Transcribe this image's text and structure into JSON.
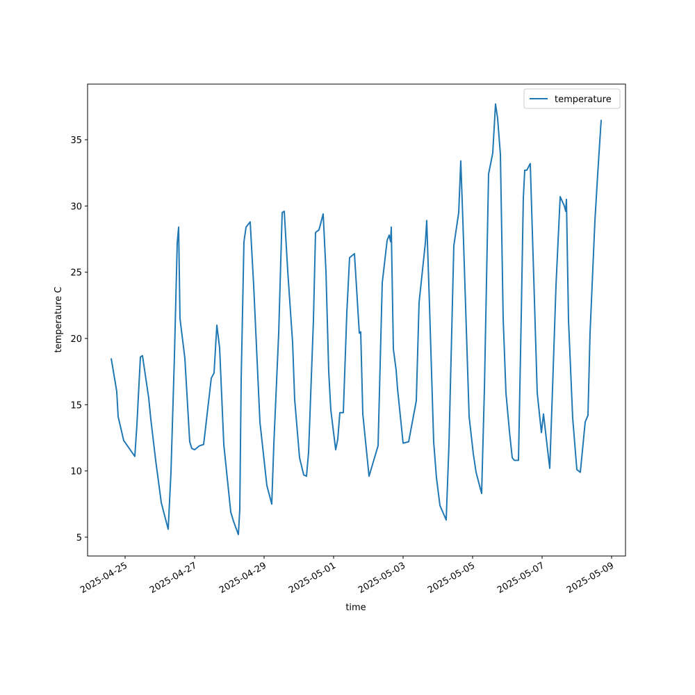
{
  "chart_data": {
    "type": "line",
    "xlabel": "time",
    "ylabel": "temperature C",
    "x": [
      "2025-04-24T14:24",
      "2025-04-24T18:14",
      "2025-04-24T19:12",
      "2025-04-24T23:02",
      "2025-04-25T06:43",
      "2025-04-25T08:10",
      "2025-04-25T10:34",
      "2025-04-25T12:00",
      "2025-04-25T16:19",
      "2025-04-25T17:46",
      "2025-04-25T21:07",
      "2025-04-26T01:00",
      "2025-04-26T05:46",
      "2025-04-26T07:41",
      "2025-04-26T10:05",
      "2025-04-26T12:00",
      "2025-04-26T12:58",
      "2025-04-26T13:55",
      "2025-04-26T17:17",
      "2025-04-26T20:38",
      "2025-04-26T22:05",
      "2025-04-27T00:00",
      "2025-04-27T03:22",
      "2025-04-27T06:14",
      "2025-04-27T07:12",
      "2025-04-27T11:31",
      "2025-04-27T13:26",
      "2025-04-27T15:22",
      "2025-04-27T17:17",
      "2025-04-27T20:10",
      "2025-04-28T00:58",
      "2025-04-28T02:53",
      "2025-04-28T06:14",
      "2025-04-28T07:12",
      "2025-04-28T08:10",
      "2025-04-28T10:05",
      "2025-04-28T11:31",
      "2025-04-28T14:24",
      "2025-04-28T16:48",
      "2025-04-28T21:07",
      "2025-04-29T01:55",
      "2025-04-29T05:17",
      "2025-04-29T06:43",
      "2025-04-29T10:05",
      "2025-04-29T12:29",
      "2025-04-29T13:55",
      "2025-04-29T16:19",
      "2025-04-29T19:41",
      "2025-04-29T21:07",
      "2025-04-30T00:29",
      "2025-04-30T03:22",
      "2025-04-30T05:17",
      "2025-04-30T06:43",
      "2025-04-30T10:05",
      "2025-04-30T11:31",
      "2025-04-30T13:55",
      "2025-04-30T16:48",
      "2025-04-30T18:43",
      "2025-04-30T20:38",
      "2025-04-30T22:05",
      "2025-05-01T01:26",
      "2025-05-01T02:53",
      "2025-05-01T04:19",
      "2025-05-01T06:43",
      "2025-05-01T09:07",
      "2025-05-01T11:02",
      "2025-05-01T14:24",
      "2025-05-01T17:46",
      "2025-05-01T18:43",
      "2025-05-01T20:10",
      "2025-05-02T00:29",
      "2025-05-02T06:43",
      "2025-05-02T09:36",
      "2025-05-02T12:58",
      "2025-05-02T14:24",
      "2025-05-02T15:22",
      "2025-05-02T15:50",
      "2025-05-02T17:17",
      "2025-05-02T19:12",
      "2025-05-02T20:10",
      "2025-05-03T00:00",
      "2025-05-03T03:50",
      "2025-05-03T09:07",
      "2025-05-03T11:02",
      "2025-05-03T15:22",
      "2025-05-03T16:19",
      "2025-05-03T18:14",
      "2025-05-03T21:07",
      "2025-05-03T23:02",
      "2025-05-04T01:26",
      "2025-05-04T05:46",
      "2025-05-04T07:41",
      "2025-05-04T11:02",
      "2025-05-04T14:24",
      "2025-05-04T15:50",
      "2025-05-04T17:17",
      "2025-05-04T21:36",
      "2025-05-05T00:29",
      "2025-05-05T02:24",
      "2025-05-05T06:14",
      "2025-05-05T08:10",
      "2025-05-05T11:02",
      "2025-05-05T13:55",
      "2025-05-05T15:50",
      "2025-05-05T17:17",
      "2025-05-05T19:12",
      "2025-05-05T21:07",
      "2025-05-05T23:02",
      "2025-05-06T01:26",
      "2025-05-06T03:22",
      "2025-05-06T04:48",
      "2025-05-06T07:41",
      "2025-05-06T09:36",
      "2025-05-06T11:02",
      "2025-05-06T12:00",
      "2025-05-06T13:26",
      "2025-05-06T15:50",
      "2025-05-06T18:14",
      "2025-05-06T20:38",
      "2025-05-06T23:31",
      "2025-05-07T00:58",
      "2025-05-07T03:22",
      "2025-05-07T05:17",
      "2025-05-07T07:12",
      "2025-05-07T09:36",
      "2025-05-07T12:29",
      "2025-05-07T15:22",
      "2025-05-07T16:19",
      "2025-05-07T16:48",
      "2025-05-07T18:14",
      "2025-05-07T21:07",
      "2025-05-08T00:00",
      "2025-05-08T02:24",
      "2025-05-08T05:46",
      "2025-05-08T07:41",
      "2025-05-08T09:07",
      "2025-05-08T12:29",
      "2025-05-08T14:24",
      "2025-05-08T16:48"
    ],
    "series": [
      {
        "name": "temperature",
        "color": "#1f77b4",
        "values": [
          18.5,
          16.0,
          14.1,
          12.3,
          11.1,
          13.5,
          18.6,
          18.7,
          15.5,
          13.9,
          10.8,
          7.6,
          5.6,
          9.9,
          18.7,
          27.2,
          28.4,
          21.5,
          18.5,
          12.2,
          11.7,
          11.6,
          11.9,
          12.0,
          12.9,
          17.0,
          17.4,
          21.0,
          19.3,
          12.0,
          6.9,
          6.2,
          5.2,
          7.1,
          16.9,
          27.3,
          28.4,
          28.8,
          24.0,
          13.7,
          8.9,
          7.5,
          12.0,
          20.4,
          29.5,
          29.6,
          25.1,
          19.7,
          15.4,
          11.0,
          9.7,
          9.6,
          11.4,
          21.4,
          28.0,
          28.2,
          29.4,
          25.1,
          17.5,
          14.6,
          11.6,
          12.4,
          14.4,
          14.4,
          21.9,
          26.1,
          26.4,
          20.4,
          20.5,
          14.3,
          9.6,
          11.9,
          24.2,
          27.4,
          27.8,
          27.3,
          28.4,
          19.2,
          17.6,
          16.2,
          12.1,
          12.2,
          15.3,
          22.7,
          27.2,
          28.9,
          22.5,
          12.2,
          9.5,
          7.4,
          6.3,
          12.0,
          27.0,
          29.5,
          33.4,
          28.9,
          14.1,
          11.3,
          9.9,
          8.3,
          16.2,
          32.4,
          34.0,
          37.7,
          36.6,
          33.9,
          21.5,
          15.9,
          13.0,
          11.0,
          10.8,
          10.8,
          21.7,
          30.6,
          32.7,
          32.7,
          33.2,
          24.6,
          15.9,
          12.9,
          14.3,
          12.0,
          10.2,
          16.2,
          24.0,
          30.7,
          30.0,
          29.6,
          30.5,
          21.4,
          14.0,
          10.1,
          9.9,
          13.7,
          14.2,
          20.4,
          28.9,
          32.4,
          36.5
        ]
      }
    ],
    "xlim": [
      "2025-04-23T22:05",
      "2025-05-09T09:36"
    ],
    "xticks": [
      "2025-04-25",
      "2025-04-27",
      "2025-04-29",
      "2025-05-01",
      "2025-05-03",
      "2025-05-05",
      "2025-05-07",
      "2025-05-09"
    ],
    "ylim": [
      3.58,
      39.2
    ],
    "yticks": [
      5,
      10,
      15,
      20,
      25,
      30,
      35
    ],
    "legend": "upper right",
    "grid": false
  }
}
